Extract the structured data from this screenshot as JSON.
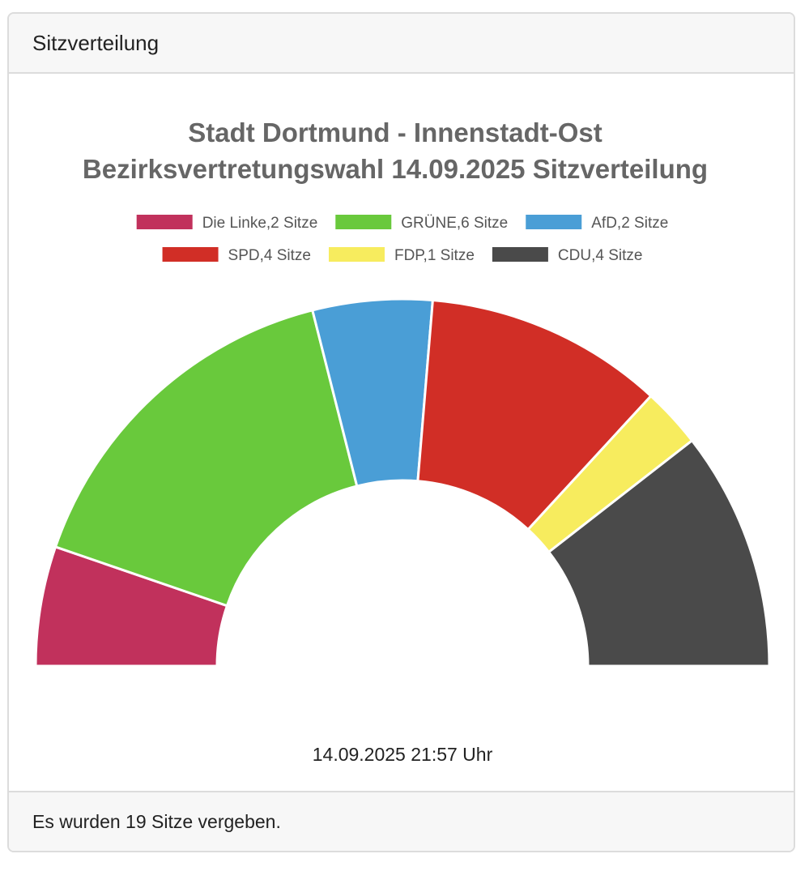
{
  "card": {
    "header_title": "Sitzverteilung",
    "footer_text": "Es wurden 19 Sitze vergeben."
  },
  "timestamp": "14.09.2025 21:57 Uhr",
  "chart_data": {
    "type": "pie",
    "variant": "half-doughnut",
    "title": "Stadt Dortmund - Innenstadt-Ost",
    "subtitle": "Bezirksvertretungswahl 14.09.2025 Sitzverteilung",
    "legend_placement": "top",
    "total_seats": 19,
    "series": [
      {
        "name": "Die Linke",
        "value": 2,
        "legend_label": "Die Linke,2 Sitze",
        "color": "#c1315c"
      },
      {
        "name": "GRÜNE",
        "value": 6,
        "legend_label": "GRÜNE,6 Sitze",
        "color": "#69c93c"
      },
      {
        "name": "AfD",
        "value": 2,
        "legend_label": "AfD,2 Sitze",
        "color": "#4a9ed6"
      },
      {
        "name": "SPD",
        "value": 4,
        "legend_label": "SPD,4 Sitze",
        "color": "#d12e26"
      },
      {
        "name": "FDP",
        "value": 1,
        "legend_label": "FDP,1 Sitze",
        "color": "#f7ec5e"
      },
      {
        "name": "CDU",
        "value": 4,
        "legend_label": "CDU,4 Sitze",
        "color": "#4a4a4a"
      }
    ]
  }
}
